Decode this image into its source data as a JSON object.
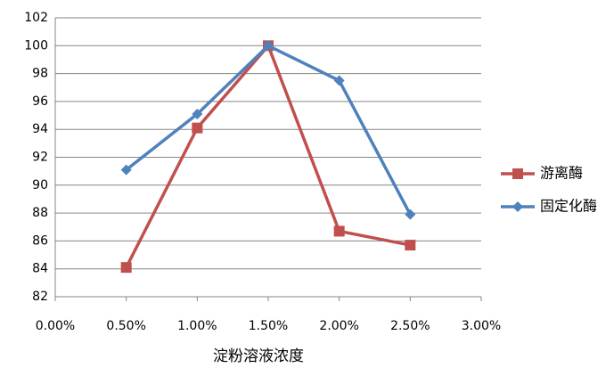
{
  "chart_data": {
    "type": "line",
    "x_label": "淀粉溶液浓度",
    "x": [
      0.5,
      1.0,
      1.5,
      2.0,
      2.5
    ],
    "series": [
      {
        "name": "游离酶",
        "color": "#c0504d",
        "marker": "square",
        "values": [
          84.1,
          94.1,
          100,
          86.7,
          85.7
        ]
      },
      {
        "name": "固定化酶",
        "color": "#4f81bd",
        "marker": "diamond",
        "values": [
          91.1,
          95.1,
          100,
          97.5,
          87.9
        ]
      }
    ],
    "xlim": [
      0,
      3
    ],
    "xticks": [
      {
        "value": 0,
        "label": "0.00%"
      },
      {
        "value": 0.5,
        "label": "0.50%"
      },
      {
        "value": 1,
        "label": "1.00%"
      },
      {
        "value": 1.5,
        "label": "1.50%"
      },
      {
        "value": 2,
        "label": "2.00%"
      },
      {
        "value": 2.5,
        "label": "2.50%"
      },
      {
        "value": 3,
        "label": "3.00%"
      }
    ],
    "ylim": [
      82,
      102
    ],
    "yticks": [
      82,
      84,
      86,
      88,
      90,
      92,
      94,
      96,
      98,
      100,
      102
    ],
    "grid": true,
    "legend": "right"
  }
}
